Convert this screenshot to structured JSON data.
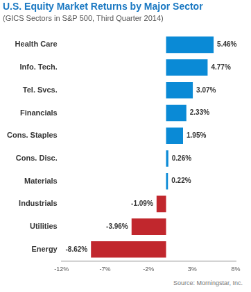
{
  "chart_data": {
    "type": "bar",
    "title": "U.S. Equity Market Returns by Major Sector",
    "subtitle": "(GICS Sectors in S&P 500, Third Quarter 2014)",
    "source": "Source: Morningstar, Inc.",
    "orientation": "horizontal",
    "categories": [
      "Health Care",
      "Info. Tech.",
      "Tel. Svcs.",
      "Financials",
      "Cons. Staples",
      "Cons. Disc.",
      "Materials",
      "Industrials",
      "Utilities",
      "Energy"
    ],
    "values": [
      5.46,
      4.77,
      3.07,
      2.33,
      1.95,
      0.26,
      0.22,
      -1.09,
      -3.96,
      -8.62
    ],
    "value_labels": [
      "5.46%",
      "4.77%",
      "3.07%",
      "2.33%",
      "1.95%",
      "0.26%",
      "0.22%",
      "-1.09%",
      "-3.96%",
      "-8.62%"
    ],
    "colors": [
      "#0a8ad6",
      "#0a8ad6",
      "#0a8ad6",
      "#0a8ad6",
      "#0a8ad6",
      "#0a8ad6",
      "#0a8ad6",
      "#c1272d",
      "#c1272d",
      "#c1272d"
    ],
    "xlim": [
      -12,
      8
    ],
    "xticks": [
      {
        "value": -12,
        "label": "-12%"
      },
      {
        "value": -7,
        "label": "-7%"
      },
      {
        "value": -2,
        "label": "-2%"
      },
      {
        "value": 3,
        "label": "3%"
      },
      {
        "value": 8,
        "label": "8%"
      }
    ],
    "grid": false,
    "data_labels": true
  }
}
